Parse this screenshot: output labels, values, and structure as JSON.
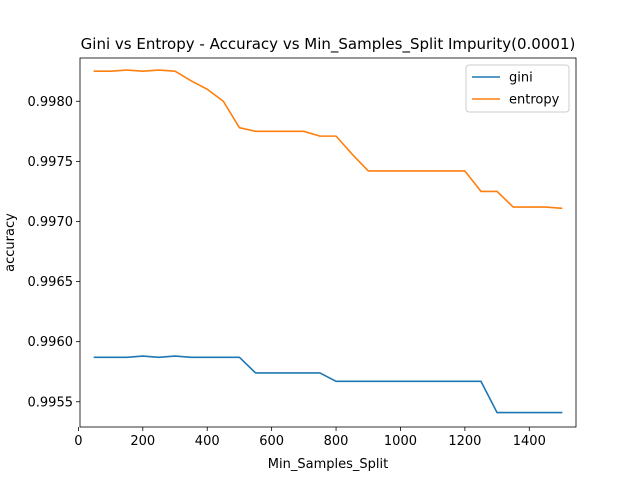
{
  "chart_data": {
    "type": "line",
    "title": "Gini vs Entropy - Accuracy vs Min_Samples_Split Impurity(0.0001)",
    "xlabel": "Min_Samples_Split",
    "ylabel": "accuracy",
    "xlim": [
      5,
      1545
    ],
    "ylim": [
      0.99529,
      0.99836
    ],
    "xticks": [
      0,
      200,
      400,
      600,
      800,
      1000,
      1200,
      1400
    ],
    "xtick_labels": [
      "0",
      "200",
      "400",
      "600",
      "800",
      "1000",
      "1200",
      "1400"
    ],
    "yticks": [
      0.9955,
      0.996,
      0.9965,
      0.997,
      0.9975,
      0.998
    ],
    "ytick_labels": [
      "0.9955",
      "0.9960",
      "0.9965",
      "0.9970",
      "0.9975",
      "0.9980"
    ],
    "grid": false,
    "legend_position": "top-right",
    "x": [
      50,
      100,
      150,
      200,
      250,
      300,
      350,
      400,
      450,
      500,
      550,
      600,
      650,
      700,
      750,
      800,
      850,
      900,
      950,
      1000,
      1050,
      1100,
      1150,
      1200,
      1250,
      1300,
      1350,
      1400,
      1450,
      1500
    ],
    "series": [
      {
        "name": "gini",
        "color": "#1f77b4",
        "values": [
          0.99587,
          0.99587,
          0.99587,
          0.99588,
          0.99587,
          0.99588,
          0.99587,
          0.99587,
          0.99587,
          0.99587,
          0.99574,
          0.99574,
          0.99574,
          0.99574,
          0.99574,
          0.99567,
          0.99567,
          0.99567,
          0.99567,
          0.99567,
          0.99567,
          0.99567,
          0.99567,
          0.99567,
          0.99567,
          0.99541,
          0.99541,
          0.99541,
          0.99541,
          0.99541
        ]
      },
      {
        "name": "entropy",
        "color": "#ff7f0e",
        "values": [
          0.99825,
          0.99825,
          0.99826,
          0.99825,
          0.99826,
          0.99825,
          0.99817,
          0.9981,
          0.998,
          0.99778,
          0.99775,
          0.99775,
          0.99775,
          0.99775,
          0.99771,
          0.99771,
          0.99756,
          0.99742,
          0.99742,
          0.99742,
          0.99742,
          0.99742,
          0.99742,
          0.99742,
          0.99725,
          0.99725,
          0.99712,
          0.99712,
          0.99712,
          0.99711
        ]
      }
    ]
  }
}
